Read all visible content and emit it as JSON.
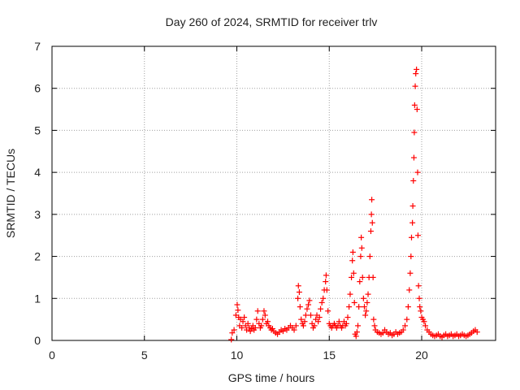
{
  "chart_data": {
    "type": "scatter",
    "title": "Day 260 of 2024, SRMTID for receiver trlv",
    "xlabel": "GPS time / hours",
    "ylabel": "SRMTID / TECUs",
    "xlim": [
      0,
      24
    ],
    "ylim": [
      0,
      7
    ],
    "x_ticks": [
      0,
      5,
      10,
      15,
      20
    ],
    "y_ticks": [
      0,
      1,
      2,
      3,
      4,
      5,
      6,
      7
    ],
    "grid": true,
    "marker": "+",
    "colors": {
      "series": "#ff0000",
      "axis": "#000000",
      "grid": "#a0a0a0"
    },
    "series": [
      {
        "name": "SRMTID",
        "points": [
          [
            9.7,
            0.02
          ],
          [
            9.75,
            0.18
          ],
          [
            9.85,
            0.25
          ],
          [
            9.95,
            0.6
          ],
          [
            10.02,
            0.85
          ],
          [
            10.06,
            0.72
          ],
          [
            10.1,
            0.55
          ],
          [
            10.15,
            0.35
          ],
          [
            10.2,
            0.5
          ],
          [
            10.27,
            0.3
          ],
          [
            10.33,
            0.45
          ],
          [
            10.4,
            0.55
          ],
          [
            10.47,
            0.35
          ],
          [
            10.53,
            0.25
          ],
          [
            10.6,
            0.4
          ],
          [
            10.67,
            0.3
          ],
          [
            10.73,
            0.22
          ],
          [
            10.8,
            0.28
          ],
          [
            10.87,
            0.35
          ],
          [
            10.93,
            0.25
          ],
          [
            11.0,
            0.3
          ],
          [
            11.07,
            0.5
          ],
          [
            11.13,
            0.7
          ],
          [
            11.2,
            0.4
          ],
          [
            11.27,
            0.3
          ],
          [
            11.33,
            0.35
          ],
          [
            11.4,
            0.5
          ],
          [
            11.47,
            0.7
          ],
          [
            11.53,
            0.6
          ],
          [
            11.6,
            0.4
          ],
          [
            11.67,
            0.45
          ],
          [
            11.73,
            0.35
          ],
          [
            11.8,
            0.3
          ],
          [
            11.87,
            0.25
          ],
          [
            11.93,
            0.28
          ],
          [
            12.0,
            0.22
          ],
          [
            12.1,
            0.18
          ],
          [
            12.2,
            0.15
          ],
          [
            12.3,
            0.2
          ],
          [
            12.4,
            0.25
          ],
          [
            12.5,
            0.22
          ],
          [
            12.6,
            0.28
          ],
          [
            12.7,
            0.25
          ],
          [
            12.8,
            0.3
          ],
          [
            12.9,
            0.35
          ],
          [
            13.0,
            0.3
          ],
          [
            13.1,
            0.25
          ],
          [
            13.2,
            0.35
          ],
          [
            13.3,
            1.0
          ],
          [
            13.33,
            1.3
          ],
          [
            13.38,
            1.15
          ],
          [
            13.42,
            0.8
          ],
          [
            13.48,
            0.5
          ],
          [
            13.55,
            0.4
          ],
          [
            13.6,
            0.35
          ],
          [
            13.67,
            0.45
          ],
          [
            13.73,
            0.6
          ],
          [
            13.8,
            0.75
          ],
          [
            13.87,
            0.85
          ],
          [
            13.93,
            0.95
          ],
          [
            14.0,
            0.6
          ],
          [
            14.07,
            0.4
          ],
          [
            14.13,
            0.3
          ],
          [
            14.2,
            0.35
          ],
          [
            14.27,
            0.5
          ],
          [
            14.33,
            0.6
          ],
          [
            14.4,
            0.45
          ],
          [
            14.47,
            0.55
          ],
          [
            14.53,
            0.75
          ],
          [
            14.6,
            0.9
          ],
          [
            14.67,
            1.0
          ],
          [
            14.73,
            1.2
          ],
          [
            14.8,
            1.4
          ],
          [
            14.83,
            1.55
          ],
          [
            14.87,
            1.2
          ],
          [
            14.93,
            0.7
          ],
          [
            15.0,
            0.4
          ],
          [
            15.07,
            0.35
          ],
          [
            15.13,
            0.3
          ],
          [
            15.2,
            0.35
          ],
          [
            15.27,
            0.4
          ],
          [
            15.33,
            0.35
          ],
          [
            15.4,
            0.3
          ],
          [
            15.47,
            0.35
          ],
          [
            15.53,
            0.45
          ],
          [
            15.6,
            0.35
          ],
          [
            15.67,
            0.3
          ],
          [
            15.73,
            0.35
          ],
          [
            15.8,
            0.45
          ],
          [
            15.87,
            0.35
          ],
          [
            15.93,
            0.4
          ],
          [
            16.0,
            0.55
          ],
          [
            16.07,
            0.8
          ],
          [
            16.13,
            1.1
          ],
          [
            16.2,
            1.5
          ],
          [
            16.25,
            1.9
          ],
          [
            16.28,
            2.1
          ],
          [
            16.32,
            1.6
          ],
          [
            16.36,
            0.9
          ],
          [
            16.4,
            0.15
          ],
          [
            16.45,
            0.1
          ],
          [
            16.5,
            0.2
          ],
          [
            16.55,
            0.35
          ],
          [
            16.6,
            0.8
          ],
          [
            16.65,
            1.4
          ],
          [
            16.7,
            2.0
          ],
          [
            16.73,
            2.45
          ],
          [
            16.76,
            2.2
          ],
          [
            16.8,
            1.5
          ],
          [
            16.85,
            1.0
          ],
          [
            16.9,
            0.8
          ],
          [
            16.95,
            0.6
          ],
          [
            17.0,
            0.7
          ],
          [
            17.05,
            0.9
          ],
          [
            17.1,
            1.1
          ],
          [
            17.15,
            1.5
          ],
          [
            17.2,
            2.0
          ],
          [
            17.25,
            2.6
          ],
          [
            17.28,
            3.0
          ],
          [
            17.3,
            3.35
          ],
          [
            17.33,
            2.8
          ],
          [
            17.37,
            1.5
          ],
          [
            17.4,
            0.5
          ],
          [
            17.45,
            0.35
          ],
          [
            17.5,
            0.25
          ],
          [
            17.6,
            0.2
          ],
          [
            17.7,
            0.18
          ],
          [
            17.8,
            0.15
          ],
          [
            17.9,
            0.18
          ],
          [
            18.0,
            0.25
          ],
          [
            18.1,
            0.2
          ],
          [
            18.2,
            0.15
          ],
          [
            18.3,
            0.18
          ],
          [
            18.4,
            0.12
          ],
          [
            18.5,
            0.15
          ],
          [
            18.6,
            0.2
          ],
          [
            18.7,
            0.15
          ],
          [
            18.8,
            0.18
          ],
          [
            18.9,
            0.2
          ],
          [
            19.0,
            0.25
          ],
          [
            19.1,
            0.35
          ],
          [
            19.2,
            0.5
          ],
          [
            19.27,
            0.8
          ],
          [
            19.33,
            1.2
          ],
          [
            19.38,
            1.6
          ],
          [
            19.42,
            2.0
          ],
          [
            19.45,
            2.45
          ],
          [
            19.5,
            2.8
          ],
          [
            19.52,
            3.2
          ],
          [
            19.55,
            3.8
          ],
          [
            19.58,
            4.35
          ],
          [
            19.6,
            4.95
          ],
          [
            19.62,
            5.6
          ],
          [
            19.65,
            6.05
          ],
          [
            19.68,
            6.35
          ],
          [
            19.72,
            6.45
          ],
          [
            19.75,
            5.5
          ],
          [
            19.78,
            4.0
          ],
          [
            19.8,
            2.5
          ],
          [
            19.83,
            1.3
          ],
          [
            19.87,
            1.0
          ],
          [
            19.9,
            0.8
          ],
          [
            19.95,
            0.7
          ],
          [
            20.0,
            0.55
          ],
          [
            20.07,
            0.5
          ],
          [
            20.13,
            0.45
          ],
          [
            20.2,
            0.35
          ],
          [
            20.3,
            0.25
          ],
          [
            20.4,
            0.2
          ],
          [
            20.5,
            0.15
          ],
          [
            20.6,
            0.12
          ],
          [
            20.7,
            0.1
          ],
          [
            20.8,
            0.12
          ],
          [
            20.9,
            0.15
          ],
          [
            21.0,
            0.1
          ],
          [
            21.1,
            0.08
          ],
          [
            21.2,
            0.12
          ],
          [
            21.3,
            0.15
          ],
          [
            21.4,
            0.1
          ],
          [
            21.5,
            0.12
          ],
          [
            21.6,
            0.15
          ],
          [
            21.7,
            0.1
          ],
          [
            21.8,
            0.12
          ],
          [
            21.9,
            0.15
          ],
          [
            22.0,
            0.1
          ],
          [
            22.1,
            0.12
          ],
          [
            22.2,
            0.15
          ],
          [
            22.3,
            0.12
          ],
          [
            22.4,
            0.1
          ],
          [
            22.5,
            0.12
          ],
          [
            22.6,
            0.15
          ],
          [
            22.7,
            0.18
          ],
          [
            22.8,
            0.22
          ],
          [
            22.9,
            0.25
          ],
          [
            23.0,
            0.2
          ]
        ]
      }
    ]
  }
}
